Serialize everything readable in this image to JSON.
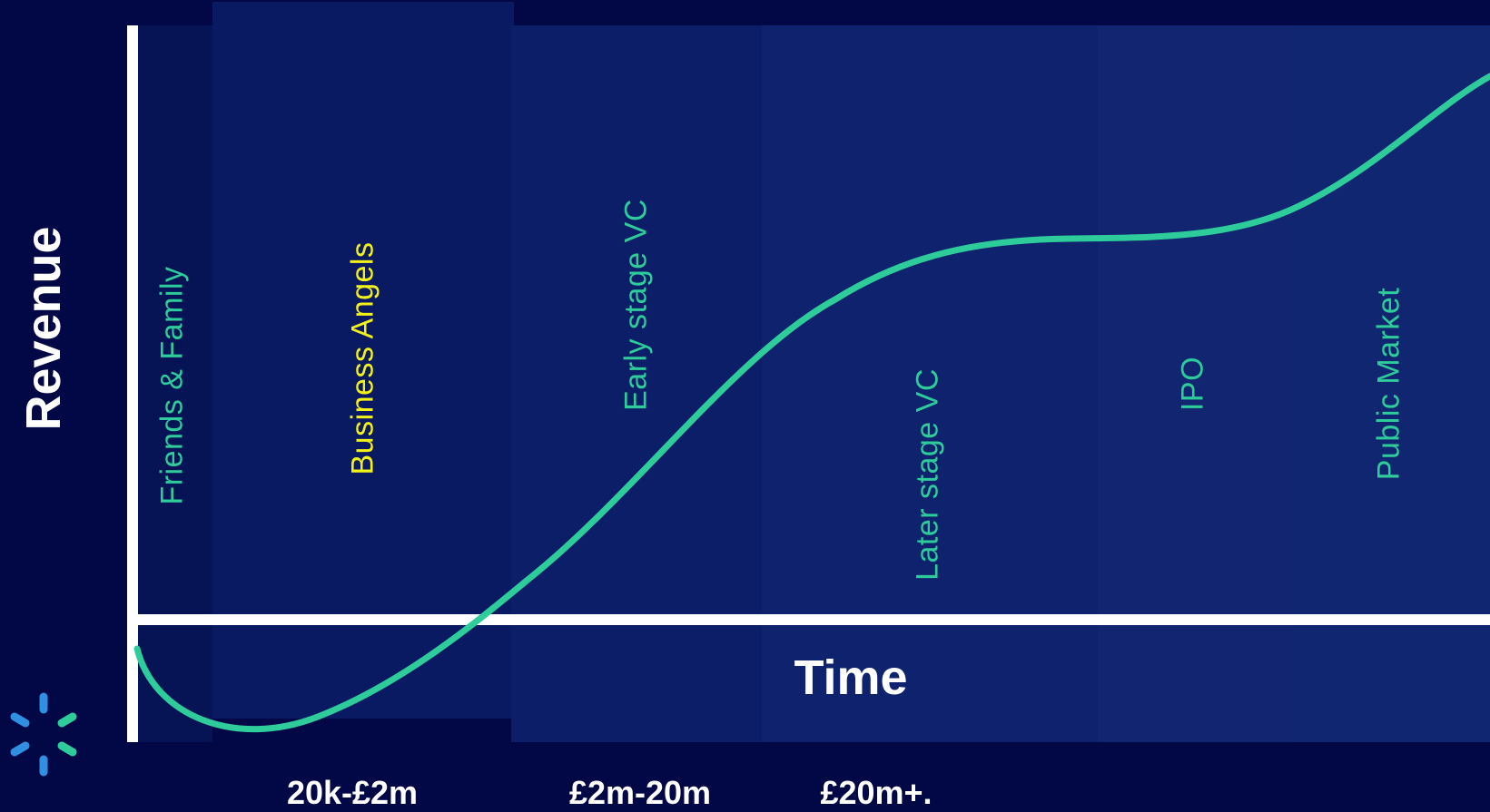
{
  "axes": {
    "y_label": "Revenue",
    "x_label": "Time"
  },
  "stages": [
    {
      "label": "Friends & Family",
      "color": "#2ecc9a"
    },
    {
      "label": "Business Angels",
      "color": "#f2f21a"
    },
    {
      "label": "Early stage VC",
      "color": "#2ecc9a"
    },
    {
      "label": "Later stage VC",
      "color": "#2ecc9a"
    },
    {
      "label": "IPO",
      "color": "#2ecc9a"
    },
    {
      "label": "Public Market",
      "color": "#2ecc9a"
    }
  ],
  "funding_ranges": [
    {
      "label": "20k-£2m"
    },
    {
      "label": "£2m-20m"
    },
    {
      "label": "£20m+."
    }
  ],
  "colors": {
    "background": "#020845",
    "curve": "#2ecc9a",
    "axis": "#ffffff"
  },
  "logo_icon": "spark-logo-icon"
}
